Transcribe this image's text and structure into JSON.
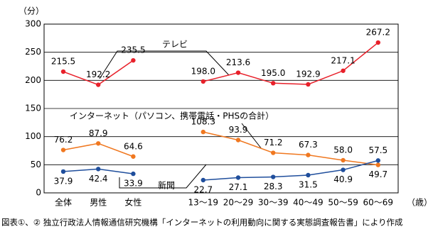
{
  "chart_data": {
    "type": "line",
    "y_unit_label": "（分）",
    "x_unit_label": "（歳）",
    "source": "図表①、② 独立行政法人情報通信研究機構「インターネットの利用動向に関する実態調査報告書」により作成",
    "categories": [
      "全体",
      "男性",
      "女性",
      null,
      "13～19",
      "20～29",
      "30～39",
      "40～49",
      "50～59",
      "60～69"
    ],
    "series": [
      {
        "name": "テレビ",
        "color": "#e8202a",
        "values": [
          215.5,
          192.2,
          235.5,
          null,
          198.0,
          213.6,
          195.0,
          192.9,
          217.1,
          267.2
        ],
        "value_labels": [
          "215.5",
          "192.2",
          "235.5",
          null,
          "198.0",
          "213.6",
          "195.0",
          "192.9",
          "217.1",
          "267.2"
        ]
      },
      {
        "name": "インターネット（パソコン、携帯電話・PHSの合計）",
        "color": "#f07820",
        "values": [
          76.2,
          87.9,
          64.6,
          null,
          108.3,
          93.9,
          71.2,
          67.3,
          58.0,
          49.7
        ],
        "value_labels": [
          "76.2",
          "87.9",
          "64.6",
          null,
          "108.3",
          "93.9",
          "71.2",
          "67.3",
          "58.0",
          "49.7"
        ]
      },
      {
        "name": "新聞",
        "color": "#1f4e9c",
        "values": [
          37.9,
          42.4,
          33.9,
          null,
          22.7,
          27.1,
          28.3,
          31.5,
          40.9,
          57.5
        ],
        "value_labels": [
          "37.9",
          "42.4",
          "33.9",
          null,
          "22.7",
          "27.1",
          "28.3",
          "31.5",
          "40.9",
          "57.5"
        ]
      }
    ],
    "ylim": [
      0,
      300
    ],
    "yticks": [
      0,
      50,
      100,
      150,
      200,
      250,
      300
    ],
    "grid": true
  }
}
